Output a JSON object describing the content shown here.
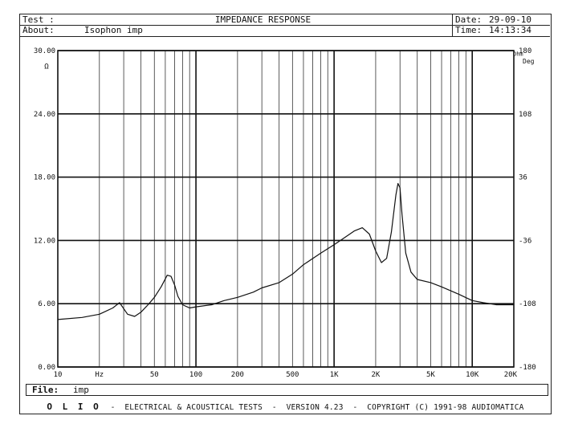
{
  "header": {
    "test_label": "Test :",
    "title": "IMPEDANCE RESPONSE",
    "date_label": "Date:",
    "date": "29-09-10",
    "about_label": "About:",
    "about_value": "Isophon imp",
    "time_label": "Time:",
    "time": "14:13:34"
  },
  "file": {
    "label": "File:",
    "name": "imp"
  },
  "footer": {
    "brand": "O L I O",
    "text": "-  ELECTRICAL & ACOUSTICAL TESTS  -  VERSION 4.23  -  COPYRIGHT (C) 1991-98 AUDIOMATICA"
  },
  "chart_data": {
    "type": "line",
    "title": "IMPEDANCE RESPONSE",
    "xscale": "log",
    "xlim": [
      10,
      20000
    ],
    "ylim": [
      0,
      30
    ],
    "y_unit": "Ω",
    "y2_unit_top": "Ohm",
    "y2_unit": "Deg",
    "y2lim": [
      -180,
      180
    ],
    "x_tick_labels": [
      "10",
      "Hz",
      "50",
      "100",
      "200",
      "500",
      "1K",
      "2K",
      "5K",
      "10K",
      "20K"
    ],
    "x_tick_values": [
      10,
      20,
      50,
      100,
      200,
      500,
      1000,
      2000,
      5000,
      10000,
      20000
    ],
    "y_ticks": [
      "0.00",
      "6.00",
      "12.00",
      "18.00",
      "24.00",
      "30.00"
    ],
    "y2_ticks": [
      "-180",
      "-108",
      "-36",
      "36",
      "108",
      "180"
    ],
    "grid": true,
    "series": [
      {
        "x": [
          10,
          15,
          20,
          25,
          28,
          32,
          36,
          40,
          45,
          50,
          56,
          62,
          66,
          70,
          74,
          80,
          90,
          100,
          130,
          160,
          200,
          260,
          300,
          400,
          500,
          600,
          800,
          1000,
          1200,
          1400,
          1600,
          1800,
          2000,
          2200,
          2400,
          2600,
          2800,
          2900,
          3000,
          3100,
          3300,
          3600,
          4000,
          5000,
          6000,
          8000,
          10000,
          12000,
          15000,
          20000
        ],
        "y": [
          4.5,
          4.7,
          5.0,
          5.6,
          6.1,
          5.0,
          4.8,
          5.2,
          5.9,
          6.6,
          7.6,
          8.7,
          8.6,
          7.8,
          6.7,
          5.9,
          5.6,
          5.7,
          5.9,
          6.3,
          6.6,
          7.1,
          7.5,
          8.0,
          8.8,
          9.7,
          10.8,
          11.6,
          12.3,
          12.9,
          13.2,
          12.6,
          11.0,
          9.9,
          10.3,
          12.8,
          16.3,
          17.4,
          17.0,
          14.5,
          10.8,
          9.0,
          8.3,
          8.0,
          7.6,
          6.9,
          6.3,
          6.1,
          5.9,
          5.9
        ]
      }
    ]
  }
}
